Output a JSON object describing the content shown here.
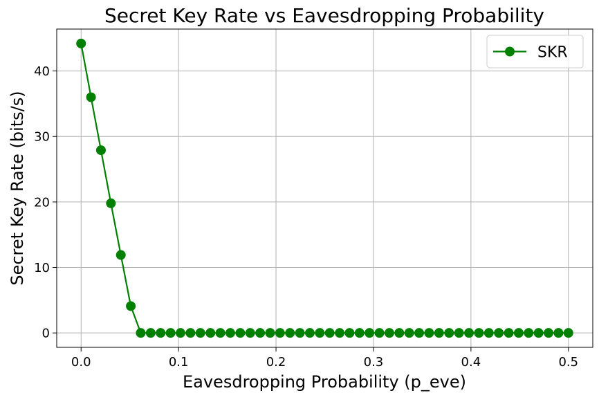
{
  "chart_data": {
    "type": "line",
    "title": "Secret Key Rate vs Eavesdropping Probability",
    "xlabel": "Eavesdropping Probability (p_eve)",
    "ylabel": "Secret Key Rate (bits/s)",
    "xlim": [
      -0.025,
      0.525
    ],
    "ylim": [
      -2.2,
      46.4
    ],
    "xticks": [
      0.0,
      0.1,
      0.2,
      0.3,
      0.4,
      0.5
    ],
    "xtick_labels": [
      "0.0",
      "0.1",
      "0.2",
      "0.3",
      "0.4",
      "0.5"
    ],
    "yticks": [
      0,
      10,
      20,
      30,
      40
    ],
    "ytick_labels": [
      "0",
      "10",
      "20",
      "30",
      "40"
    ],
    "grid": true,
    "legend_position": "top-right",
    "series": [
      {
        "name": "SKR",
        "color": "#008000",
        "marker": "circle",
        "x": [
          0.0,
          0.0102,
          0.0204,
          0.0306,
          0.0408,
          0.051,
          0.0612,
          0.0714,
          0.0816,
          0.0918,
          0.102,
          0.1122,
          0.1224,
          0.1327,
          0.1429,
          0.1531,
          0.1633,
          0.1735,
          0.1837,
          0.1939,
          0.2041,
          0.2143,
          0.2245,
          0.2347,
          0.2449,
          0.2551,
          0.2653,
          0.2755,
          0.2857,
          0.2959,
          0.3061,
          0.3163,
          0.3265,
          0.3367,
          0.3469,
          0.3571,
          0.3673,
          0.3776,
          0.3878,
          0.398,
          0.4082,
          0.4184,
          0.4286,
          0.4388,
          0.449,
          0.4592,
          0.4694,
          0.4796,
          0.4898,
          0.5
        ],
        "y": [
          44.2,
          36.0,
          27.9,
          19.8,
          11.9,
          4.1,
          0,
          0,
          0,
          0,
          0,
          0,
          0,
          0,
          0,
          0,
          0,
          0,
          0,
          0,
          0,
          0,
          0,
          0,
          0,
          0,
          0,
          0,
          0,
          0,
          0,
          0,
          0,
          0,
          0,
          0,
          0,
          0,
          0,
          0,
          0,
          0,
          0,
          0,
          0,
          0,
          0,
          0,
          0,
          0
        ]
      }
    ]
  }
}
